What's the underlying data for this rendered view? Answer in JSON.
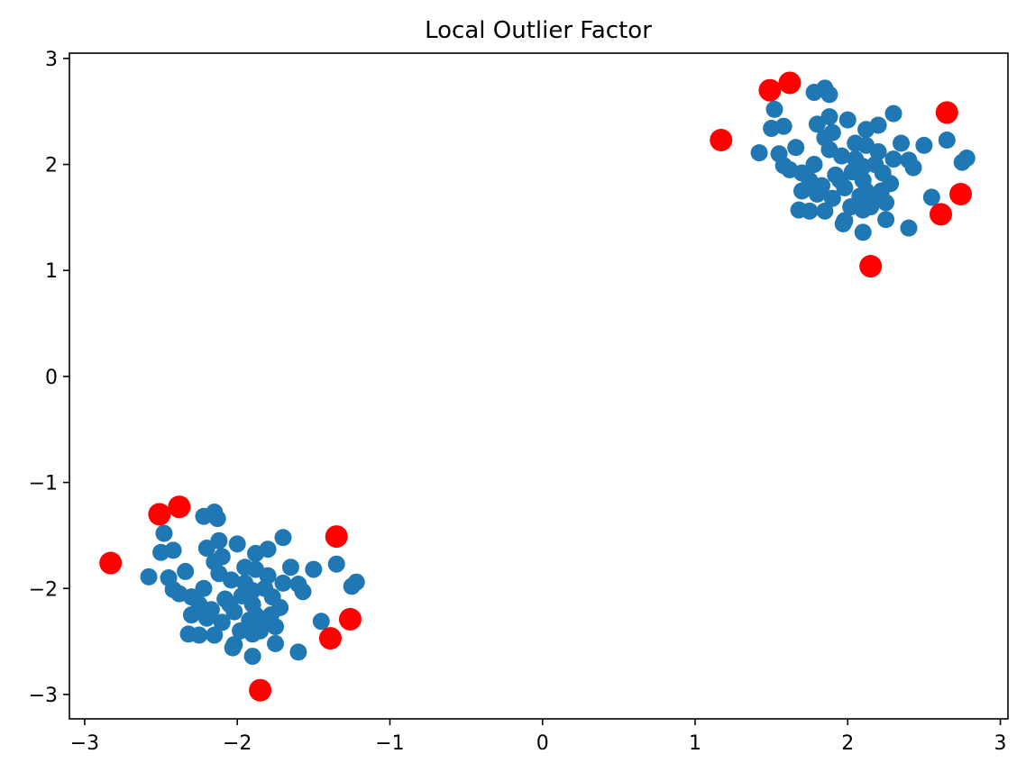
{
  "chart_data": {
    "type": "scatter",
    "title": "Local Outlier Factor",
    "xlabel": "",
    "ylabel": "",
    "xlim": [
      -3.1,
      3.05
    ],
    "ylim": [
      -3.23,
      3.05
    ],
    "x_ticks": [
      -3,
      -2,
      -1,
      0,
      1,
      2,
      3
    ],
    "x_tick_labels": [
      "−3",
      "−2",
      "−1",
      "0",
      "1",
      "2",
      "3"
    ],
    "y_ticks": [
      -3,
      -2,
      -1,
      0,
      1,
      2,
      3
    ],
    "y_tick_labels": [
      "−3",
      "−2",
      "−1",
      "0",
      "1",
      "2",
      "3"
    ],
    "grid": false,
    "legend": "none",
    "series": [
      {
        "color": "#1f77b4",
        "points": [
          [
            1.85,
            2.72
          ],
          [
            1.78,
            2.68
          ],
          [
            1.88,
            2.66
          ],
          [
            1.52,
            2.52
          ],
          [
            2.3,
            2.48
          ],
          [
            1.88,
            2.45
          ],
          [
            2.0,
            2.42
          ],
          [
            1.8,
            2.38
          ],
          [
            1.58,
            2.36
          ],
          [
            1.5,
            2.34
          ],
          [
            2.2,
            2.37
          ],
          [
            2.12,
            2.33
          ],
          [
            1.9,
            2.3
          ],
          [
            1.85,
            2.25
          ],
          [
            2.05,
            2.2
          ],
          [
            2.65,
            2.23
          ],
          [
            2.35,
            2.2
          ],
          [
            1.66,
            2.16
          ],
          [
            2.12,
            2.18
          ],
          [
            2.5,
            2.18
          ],
          [
            1.42,
            2.11
          ],
          [
            1.55,
            2.1
          ],
          [
            1.88,
            2.14
          ],
          [
            2.2,
            2.12
          ],
          [
            2.78,
            2.06
          ],
          [
            1.96,
            2.08
          ],
          [
            2.05,
            2.05
          ],
          [
            2.3,
            2.05
          ],
          [
            2.4,
            2.04
          ],
          [
            2.75,
            2.02
          ],
          [
            1.58,
            1.99
          ],
          [
            1.78,
            2.0
          ],
          [
            2.1,
            1.98
          ],
          [
            2.18,
            2.0
          ],
          [
            1.62,
            1.95
          ],
          [
            2.43,
            1.97
          ],
          [
            1.7,
            1.92
          ],
          [
            1.92,
            1.9
          ],
          [
            2.03,
            1.93
          ],
          [
            2.23,
            1.92
          ],
          [
            1.75,
            1.85
          ],
          [
            1.95,
            1.85
          ],
          [
            2.1,
            1.85
          ],
          [
            2.28,
            1.82
          ],
          [
            1.83,
            1.8
          ],
          [
            1.7,
            1.75
          ],
          [
            1.98,
            1.78
          ],
          [
            2.12,
            1.75
          ],
          [
            2.22,
            1.75
          ],
          [
            1.8,
            1.72
          ],
          [
            2.08,
            1.7
          ],
          [
            1.9,
            1.68
          ],
          [
            2.15,
            1.66
          ],
          [
            2.55,
            1.69
          ],
          [
            2.25,
            1.64
          ],
          [
            2.02,
            1.6
          ],
          [
            1.68,
            1.57
          ],
          [
            1.75,
            1.56
          ],
          [
            1.85,
            1.56
          ],
          [
            2.1,
            1.57
          ],
          [
            2.15,
            1.6
          ],
          [
            1.98,
            1.47
          ],
          [
            2.25,
            1.48
          ],
          [
            1.97,
            1.44
          ],
          [
            2.4,
            1.4
          ],
          [
            2.1,
            1.36
          ]
        ]
      },
      {
        "color": "#1f77b4",
        "points": [
          [
            -2.15,
            -1.28
          ],
          [
            -2.22,
            -1.32
          ],
          [
            -2.13,
            -1.34
          ],
          [
            -2.48,
            -1.48
          ],
          [
            -1.7,
            -1.52
          ],
          [
            -2.12,
            -1.55
          ],
          [
            -2.0,
            -1.58
          ],
          [
            -2.2,
            -1.62
          ],
          [
            -2.42,
            -1.64
          ],
          [
            -2.5,
            -1.66
          ],
          [
            -1.8,
            -1.63
          ],
          [
            -1.88,
            -1.67
          ],
          [
            -2.1,
            -1.7
          ],
          [
            -2.15,
            -1.75
          ],
          [
            -1.95,
            -1.8
          ],
          [
            -1.35,
            -1.77
          ],
          [
            -1.65,
            -1.8
          ],
          [
            -2.34,
            -1.84
          ],
          [
            -1.88,
            -1.82
          ],
          [
            -1.5,
            -1.82
          ],
          [
            -2.58,
            -1.89
          ],
          [
            -2.45,
            -1.9
          ],
          [
            -2.12,
            -1.86
          ],
          [
            -1.8,
            -1.88
          ],
          [
            -1.22,
            -1.94
          ],
          [
            -2.04,
            -1.92
          ],
          [
            -1.95,
            -1.95
          ],
          [
            -1.7,
            -1.95
          ],
          [
            -1.6,
            -1.96
          ],
          [
            -1.25,
            -1.98
          ],
          [
            -2.42,
            -2.01
          ],
          [
            -2.22,
            -2.0
          ],
          [
            -1.9,
            -2.02
          ],
          [
            -1.82,
            -2.0
          ],
          [
            -2.38,
            -2.05
          ],
          [
            -1.57,
            -2.03
          ],
          [
            -2.3,
            -2.08
          ],
          [
            -2.08,
            -2.1
          ],
          [
            -1.97,
            -2.07
          ],
          [
            -1.77,
            -2.08
          ],
          [
            -2.25,
            -2.15
          ],
          [
            -2.05,
            -2.15
          ],
          [
            -1.9,
            -2.15
          ],
          [
            -1.72,
            -2.18
          ],
          [
            -2.17,
            -2.2
          ],
          [
            -2.3,
            -2.25
          ],
          [
            -2.02,
            -2.22
          ],
          [
            -1.88,
            -2.25
          ],
          [
            -1.78,
            -2.25
          ],
          [
            -2.2,
            -2.28
          ],
          [
            -1.92,
            -2.3
          ],
          [
            -2.1,
            -2.32
          ],
          [
            -1.85,
            -2.34
          ],
          [
            -1.45,
            -2.31
          ],
          [
            -1.75,
            -2.36
          ],
          [
            -1.98,
            -2.4
          ],
          [
            -2.32,
            -2.43
          ],
          [
            -2.25,
            -2.44
          ],
          [
            -2.15,
            -2.44
          ],
          [
            -1.9,
            -2.43
          ],
          [
            -1.85,
            -2.4
          ],
          [
            -2.02,
            -2.53
          ],
          [
            -1.75,
            -2.52
          ],
          [
            -2.03,
            -2.56
          ],
          [
            -1.6,
            -2.6
          ],
          [
            -1.9,
            -2.64
          ]
        ]
      },
      {
        "color": "#ff0000",
        "points": [
          [
            1.62,
            2.77
          ],
          [
            1.49,
            2.7
          ],
          [
            2.65,
            2.49
          ],
          [
            1.17,
            2.23
          ],
          [
            2.74,
            1.72
          ],
          [
            2.61,
            1.53
          ],
          [
            2.15,
            1.04
          ],
          [
            -2.38,
            -1.23
          ],
          [
            -2.51,
            -1.3
          ],
          [
            -1.35,
            -1.51
          ],
          [
            -2.83,
            -1.76
          ],
          [
            -1.26,
            -2.29
          ],
          [
            -1.39,
            -2.47
          ],
          [
            -1.85,
            -2.96
          ]
        ]
      }
    ]
  }
}
